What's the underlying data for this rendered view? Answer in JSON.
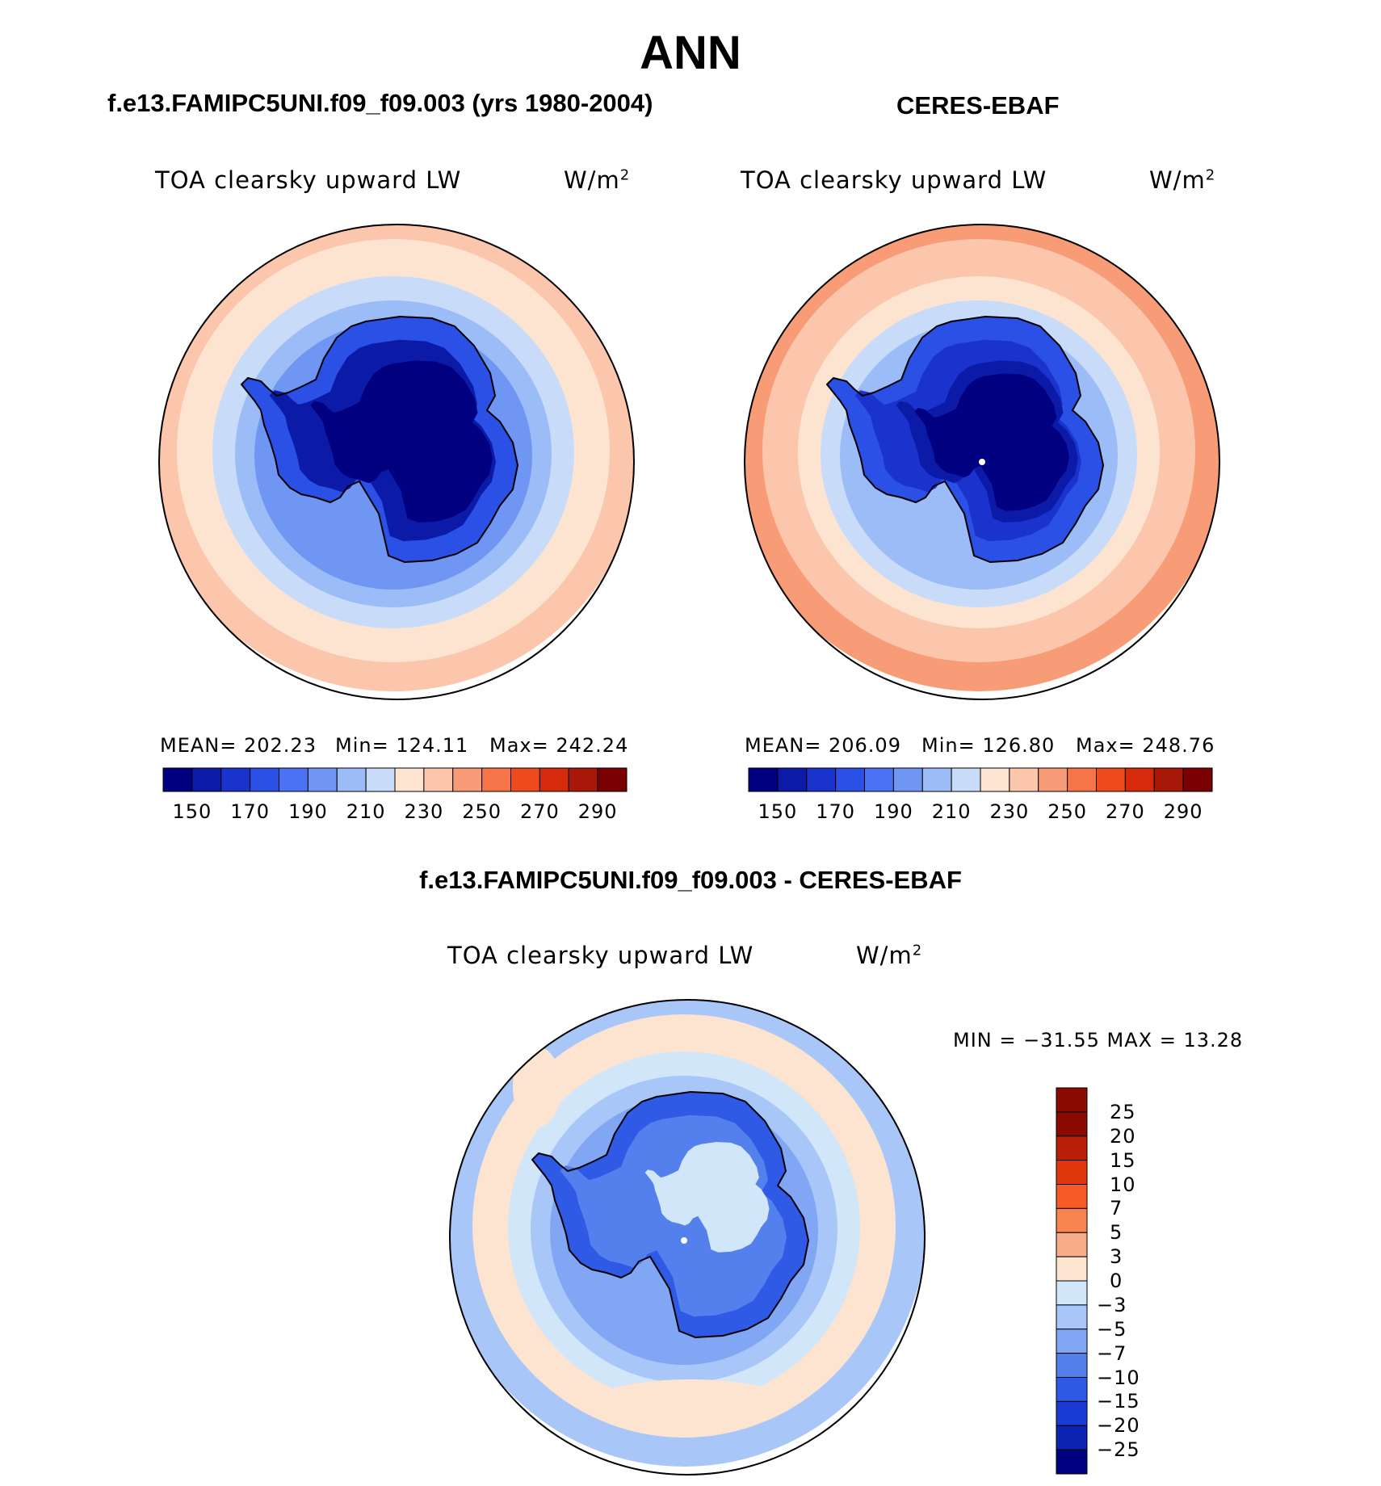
{
  "season": "ANN",
  "left_panel": {
    "title": "f.e13.FAMIPC5UNI.f09_f09.003 (yrs 1980-2004)",
    "variable": "TOA clearsky upward LW",
    "units": "W/m",
    "units_sup": "2",
    "stats": {
      "mean": "MEAN= 202.23",
      "min": "Min= 124.11",
      "max": "Max= 242.24"
    }
  },
  "right_panel": {
    "title": "CERES-EBAF",
    "variable": "TOA clearsky upward LW",
    "units": "W/m",
    "units_sup": "2",
    "stats": {
      "mean": "MEAN= 206.09",
      "min": "Min= 126.80",
      "max": "Max= 248.76"
    }
  },
  "diff_panel": {
    "title": "f.e13.FAMIPC5UNI.f09_f09.003 - CERES-EBAF",
    "variable": "TOA clearsky upward LW",
    "units": "W/m",
    "units_sup": "2",
    "minmax": "MIN = −31.55 MAX =   13.28"
  },
  "abs_colorbar": {
    "tick_labels": [
      "150",
      "170",
      "190",
      "210",
      "230",
      "250",
      "270",
      "290"
    ],
    "colors": [
      "#000080",
      "#0c1aa8",
      "#1a33cc",
      "#2a50e6",
      "#4a72f2",
      "#7096f4",
      "#9cbcf8",
      "#c8dcfa",
      "#fde4d0",
      "#fbc6ac",
      "#f89c78",
      "#f77448",
      "#ef4a1e",
      "#d62a0c",
      "#a81808",
      "#7a0004"
    ]
  },
  "diff_colorbar": {
    "levels": [
      "25",
      "20",
      "15",
      "10",
      "7",
      "5",
      "3",
      "0",
      "−3",
      "−5",
      "−7",
      "−10",
      "−15",
      "−20",
      "−25"
    ],
    "colors": [
      "#8a0a00",
      "#b81e08",
      "#e0380c",
      "#f75a24",
      "#f88450",
      "#f8ac88",
      "#fde4d0",
      "#d2e6fa",
      "#a8c6f8",
      "#80a6f4",
      "#5480ee",
      "#2e5ae6",
      "#1a3cd4",
      "#0c22b0",
      "#000080"
    ]
  },
  "map_colors": {
    "left": {
      "rings": [
        "#fbc6ac",
        "#fde4d0",
        "#c8dcfa",
        "#9cbcf8",
        "#7096f4"
      ],
      "land": [
        "#2a50e6",
        "#0c1aa8",
        "#000080"
      ]
    },
    "right": {
      "rings": [
        "#f89c78",
        "#fbc6ac",
        "#fde4d0",
        "#c8dcfa",
        "#9cbcf8"
      ],
      "land": [
        "#2a50e6",
        "#1a33cc",
        "#0c1aa8",
        "#000080"
      ]
    },
    "diff": {
      "rings": [
        "#a8c6f8",
        "#fde4d0",
        "#d2e6fa",
        "#a8c6f8",
        "#80a6f4"
      ],
      "land": [
        "#2e5ae6",
        "#5480ee",
        "#d2e6fa"
      ]
    }
  }
}
